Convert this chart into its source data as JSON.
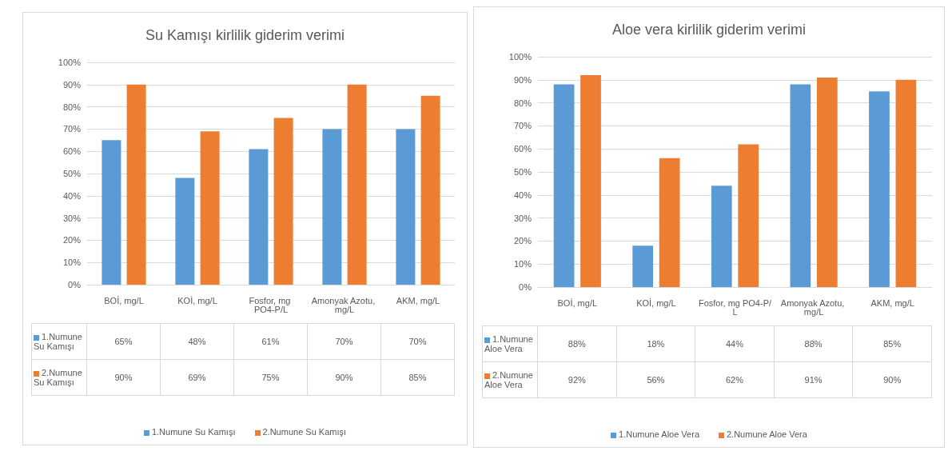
{
  "chart_data": [
    {
      "type": "bar",
      "title": "Su Kamışı kirlilik giderim verimi",
      "categories": [
        "BOİ, mg/L",
        "KOİ, mg/L",
        "Fosfor, mg PO4-P/L",
        "Amonyak Azotu, mg/L",
        "AKM, mg/L"
      ],
      "series": [
        {
          "name": "1.Numune Su Kamışı",
          "color": "#5b9bd5",
          "values": [
            65,
            48,
            61,
            70,
            70
          ],
          "value_labels": [
            "65%",
            "48%",
            "61%",
            "70%",
            "70%"
          ]
        },
        {
          "name": "2.Numune Su Kamışı",
          "color": "#ed7d31",
          "values": [
            90,
            69,
            75,
            90,
            85
          ],
          "value_labels": [
            "90%",
            "69%",
            "75%",
            "90%",
            "85%"
          ]
        }
      ],
      "ylim": [
        0,
        100
      ],
      "yticks": [
        {
          "value": 0,
          "label": "0%"
        },
        {
          "value": 10,
          "label": "10%"
        },
        {
          "value": 20,
          "label": "20%"
        },
        {
          "value": 30,
          "label": "30%"
        },
        {
          "value": 40,
          "label": "40%"
        },
        {
          "value": 50,
          "label": "50%"
        },
        {
          "value": 60,
          "label": "60%"
        },
        {
          "value": 70,
          "label": "70%"
        },
        {
          "value": 80,
          "label": "80%"
        },
        {
          "value": 90,
          "label": "90%"
        },
        {
          "value": 100,
          "label": "100%"
        }
      ],
      "grid": "y",
      "legend": "bottom"
    },
    {
      "type": "bar",
      "title": "Aloe vera kirlilik giderim verimi",
      "categories": [
        "BOİ, mg/L",
        "KOİ, mg/L",
        "Fosfor, mg PO4-P/L",
        "Amonyak Azotu, mg/L",
        "AKM, mg/L"
      ],
      "series": [
        {
          "name": "1.Numune Aloe Vera",
          "color": "#5b9bd5",
          "values": [
            88,
            18,
            44,
            88,
            85
          ],
          "value_labels": [
            "88%",
            "18%",
            "44%",
            "88%",
            "85%"
          ]
        },
        {
          "name": "2.Numune Aloe Vera",
          "color": "#ed7d31",
          "values": [
            92,
            56,
            62,
            91,
            90
          ],
          "value_labels": [
            "92%",
            "56%",
            "62%",
            "91%",
            "90%"
          ]
        }
      ],
      "ylim": [
        0,
        100
      ],
      "yticks": [
        {
          "value": 0,
          "label": "0%"
        },
        {
          "value": 10,
          "label": "10%"
        },
        {
          "value": 20,
          "label": "20%"
        },
        {
          "value": 30,
          "label": "30%"
        },
        {
          "value": 40,
          "label": "40%"
        },
        {
          "value": 50,
          "label": "50%"
        },
        {
          "value": 60,
          "label": "60%"
        },
        {
          "value": 70,
          "label": "70%"
        },
        {
          "value": 80,
          "label": "80%"
        },
        {
          "value": 90,
          "label": "90%"
        },
        {
          "value": 100,
          "label": "100%"
        }
      ],
      "grid": "y",
      "legend": "bottom"
    }
  ]
}
